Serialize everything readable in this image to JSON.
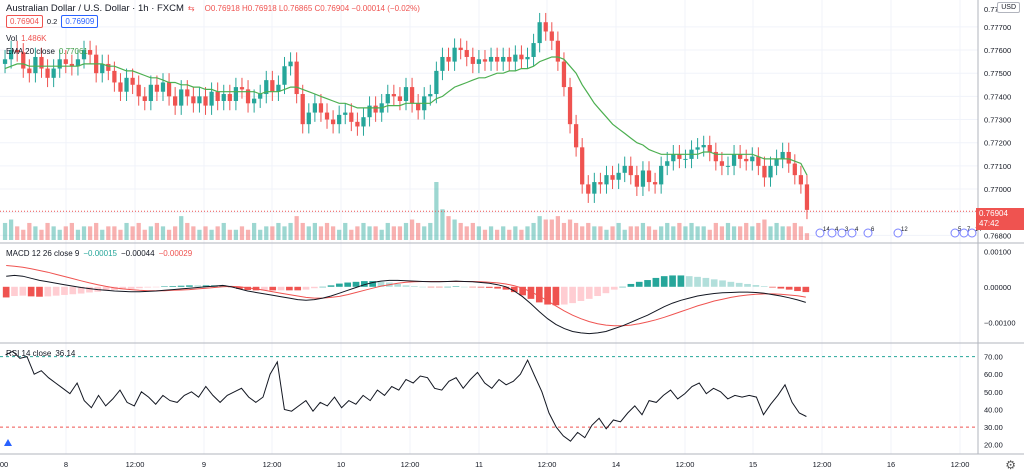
{
  "header": {
    "title": "Australian Dollar / U.S. Dollar · 1h · FXCM",
    "ohlc": "O0.76918 H0.76918 L0.76865 C0.76904 −0.00014 (−0.02%)",
    "sell_price": "0.76904",
    "spread": "0.2",
    "buy_price": "0.76909",
    "vol_label": "Vol",
    "vol_value": "1.486K",
    "ema_label": "EMA 20 close",
    "ema_value": "0.77061",
    "currency": "USD",
    "last_price": "0.76904",
    "countdown": "47:42"
  },
  "macd_legend": {
    "label": "MACD 12 26 close 9",
    "v1": "−0.00015",
    "v2": "−0.00044",
    "v3": "−0.00029"
  },
  "rsi_legend": {
    "label": "RSI 14 close",
    "value": "36.14"
  },
  "event_labels": [
    "14",
    "4",
    "3",
    "4",
    "6",
    "12",
    "5",
    "7",
    "14"
  ],
  "colors": {
    "up": "#26a69a",
    "down": "#ef5350",
    "ema": "#4caf50",
    "macd": "#131722",
    "signal": "#ef5350",
    "rsi": "#131722"
  },
  "chart_data": [
    {
      "type": "candlestick",
      "title": "Australian Dollar / U.S. Dollar · 1h · FXCM",
      "x_ticks": [
        "8",
        "12:00",
        "9",
        "12:00",
        "10",
        "12:00",
        "11",
        "12:00",
        "14",
        "12:00",
        "15",
        "12:00",
        "16",
        "12:00"
      ],
      "y_ticks": [
        0.777,
        0.776,
        0.775,
        0.774,
        0.773,
        0.772,
        0.771,
        0.77,
        0.769,
        0.768
      ],
      "y_tick_labels": [
        "0.77700",
        "0.77600",
        "0.77500",
        "0.77400",
        "0.77300",
        "0.77200",
        "0.77100",
        "0.77000",
        "0.76904",
        "0.76800"
      ],
      "ylim": [
        0.7678,
        0.7779
      ],
      "candles_close": [
        0.7756,
        0.776,
        0.7759,
        0.7752,
        0.775,
        0.7757,
        0.7752,
        0.7748,
        0.7752,
        0.7756,
        0.7754,
        0.7753,
        0.7756,
        0.776,
        0.7758,
        0.775,
        0.7754,
        0.7751,
        0.7746,
        0.7742,
        0.7748,
        0.7745,
        0.774,
        0.7738,
        0.7745,
        0.7742,
        0.7746,
        0.774,
        0.7736,
        0.7743,
        0.774,
        0.7737,
        0.774,
        0.7736,
        0.7742,
        0.7738,
        0.7741,
        0.7738,
        0.7744,
        0.7743,
        0.7737,
        0.7739,
        0.7741,
        0.7747,
        0.7742,
        0.7745,
        0.7753,
        0.7755,
        0.7741,
        0.7728,
        0.7733,
        0.7737,
        0.7733,
        0.773,
        0.7728,
        0.7732,
        0.7733,
        0.7729,
        0.7727,
        0.7731,
        0.7736,
        0.7733,
        0.7737,
        0.7741,
        0.774,
        0.7738,
        0.7744,
        0.7737,
        0.7734,
        0.774,
        0.7741,
        0.7751,
        0.7757,
        0.7755,
        0.7761,
        0.776,
        0.7757,
        0.7754,
        0.7756,
        0.7755,
        0.7757,
        0.7755,
        0.7757,
        0.7755,
        0.7758,
        0.7756,
        0.7757,
        0.7763,
        0.7772,
        0.7768,
        0.7764,
        0.7755,
        0.7744,
        0.7728,
        0.7718,
        0.7702,
        0.7698,
        0.7703,
        0.7702,
        0.7706,
        0.7704,
        0.7707,
        0.771,
        0.7706,
        0.7701,
        0.7708,
        0.7703,
        0.7702,
        0.771,
        0.7712,
        0.7715,
        0.7713,
        0.7713,
        0.7717,
        0.7718,
        0.7719,
        0.7716,
        0.7712,
        0.771,
        0.771,
        0.7715,
        0.7713,
        0.7712,
        0.7714,
        0.771,
        0.7705,
        0.771,
        0.7713,
        0.7716,
        0.7711,
        0.7706,
        0.7702,
        0.7691
      ],
      "ema": [
        0.7752,
        0.7753,
        0.7754,
        0.7754,
        0.7753,
        0.7753,
        0.7753,
        0.7753,
        0.7753,
        0.7753,
        0.7753,
        0.7753,
        0.7753,
        0.7754,
        0.7754,
        0.7754,
        0.7754,
        0.7753,
        0.7753,
        0.7752,
        0.7751,
        0.7751,
        0.775,
        0.7749,
        0.7748,
        0.7748,
        0.7747,
        0.7746,
        0.7746,
        0.7745,
        0.7745,
        0.7744,
        0.7744,
        0.7743,
        0.7743,
        0.7742,
        0.7742,
        0.7742,
        0.7742,
        0.7742,
        0.7742,
        0.7742,
        0.7741,
        0.7742,
        0.7742,
        0.7742,
        0.7743,
        0.7744,
        0.7744,
        0.7743,
        0.7742,
        0.7741,
        0.774,
        0.7739,
        0.7738,
        0.7737,
        0.7737,
        0.7736,
        0.7735,
        0.7735,
        0.7735,
        0.7735,
        0.7735,
        0.7736,
        0.7736,
        0.7736,
        0.7737,
        0.7737,
        0.7737,
        0.7737,
        0.7737,
        0.7739,
        0.774,
        0.7742,
        0.7744,
        0.7745,
        0.7746,
        0.7747,
        0.7748,
        0.7748,
        0.7749,
        0.775,
        0.775,
        0.7751,
        0.7751,
        0.7752,
        0.7752,
        0.7753,
        0.7755,
        0.7756,
        0.7757,
        0.7757,
        0.7756,
        0.7753,
        0.775,
        0.7745,
        0.7741,
        0.7737,
        0.7734,
        0.7731,
        0.7728,
        0.7726,
        0.7724,
        0.7722,
        0.772,
        0.7719,
        0.7717,
        0.7716,
        0.7715,
        0.7715,
        0.7715,
        0.7715,
        0.7715,
        0.7715,
        0.7715,
        0.7716,
        0.7716,
        0.7715,
        0.7715,
        0.7715,
        0.7715,
        0.7715,
        0.7715,
        0.7715,
        0.7714,
        0.7713,
        0.7713,
        0.7713,
        0.7713,
        0.7713,
        0.7712,
        0.7711,
        0.7706
      ]
    },
    {
      "type": "bar",
      "title": "Vol",
      "values": [
        5,
        6,
        4,
        3,
        5,
        4,
        3,
        5,
        4,
        3,
        4,
        5,
        3,
        4,
        4,
        5,
        3,
        4,
        4,
        3,
        5,
        4,
        5,
        3,
        4,
        5,
        4,
        3,
        4,
        7,
        5,
        4,
        3,
        4,
        3,
        4,
        5,
        3,
        3,
        4,
        3,
        5,
        3,
        4,
        4,
        5,
        4,
        5,
        7,
        5,
        4,
        5,
        4,
        5,
        4,
        3,
        5,
        3,
        4,
        5,
        4,
        4,
        3,
        5,
        4,
        4,
        5,
        6,
        5,
        4,
        5,
        17,
        9,
        7,
        6,
        5,
        4,
        5,
        4,
        3,
        4,
        3,
        4,
        3,
        4,
        3,
        4,
        5,
        7,
        6,
        6,
        7,
        5,
        6,
        5,
        4,
        5,
        4,
        4,
        3,
        4,
        5,
        3,
        4,
        4,
        5,
        4,
        3,
        4,
        5,
        4,
        5,
        4,
        5,
        4,
        4,
        3,
        5,
        4,
        5,
        4,
        4,
        5,
        4,
        5,
        6,
        4,
        5,
        4,
        4,
        5,
        4,
        2
      ]
    },
    {
      "type": "line",
      "title": "MACD 12 26 close 9",
      "y_ticks": [
        0.001,
        0,
        -0.001
      ],
      "y_tick_labels": [
        "0.00100",
        "0.00000",
        "−0.00100"
      ],
      "ylim": [
        -0.0015,
        0.00115
      ],
      "series": [
        {
          "name": "MACD",
          "values": [
            0.0003,
            0.00032,
            0.0003,
            0.00024,
            0.00018,
            0.00014,
            0.0001,
            6e-05,
            2e-05,
            -2e-05,
            -5e-05,
            -8e-05,
            -0.0001,
            -0.00012,
            -0.00013,
            -0.00014,
            -0.00014,
            -0.00013,
            -0.00012,
            -0.0001,
            -8e-05,
            -6e-05,
            -4e-05,
            -2e-05,
            0.0,
            2e-05,
            4e-05,
            0.0,
            -6e-05,
            -0.00012,
            -0.00016,
            -0.0002,
            -0.00024,
            -0.00028,
            -0.00032,
            -0.00036,
            -0.00038,
            -0.00036,
            -0.00032,
            -0.00026,
            -0.00018,
            -0.0001,
            -2e-05,
            6e-05,
            0.00012,
            0.00016,
            0.00018,
            0.00018,
            0.00017,
            0.00016,
            0.00015,
            0.00014,
            0.00014,
            0.00015,
            0.00016,
            0.00015,
            0.00014,
            0.00012,
            0.0001,
            6e-05,
            0.0,
            -0.00012,
            -0.00028,
            -0.00048,
            -0.0007,
            -0.0009,
            -0.00106,
            -0.00118,
            -0.00126,
            -0.0013,
            -0.00132,
            -0.0013,
            -0.00126,
            -0.00118,
            -0.0011,
            -0.001,
            -0.0009,
            -0.0008,
            -0.00068,
            -0.00056,
            -0.00046,
            -0.00038,
            -0.00032,
            -0.00026,
            -0.00022,
            -0.00019,
            -0.00017,
            -0.00016,
            -0.00015,
            -0.00015,
            -0.00016,
            -0.00018,
            -0.00022,
            -0.00026,
            -0.00031,
            -0.00037,
            -0.00044
          ]
        },
        {
          "name": "Signal",
          "values": [
            0.0006,
            0.00058,
            0.00055,
            0.00051,
            0.00046,
            0.00041,
            0.00035,
            0.00029,
            0.00023,
            0.00017,
            0.00011,
            6e-05,
            1e-05,
            -3e-05,
            -6e-05,
            -8e-05,
            -0.0001,
            -0.00011,
            -0.00011,
            -0.00011,
            -0.0001,
            -9e-05,
            -8e-05,
            -6e-05,
            -4e-05,
            -2e-05,
            0.0,
            1e-05,
            0.0,
            -3e-05,
            -6e-05,
            -0.0001,
            -0.00014,
            -0.00018,
            -0.00022,
            -0.00026,
            -0.0003,
            -0.00032,
            -0.00032,
            -0.0003,
            -0.00027,
            -0.00022,
            -0.00016,
            -0.0001,
            -4e-05,
            2e-05,
            6e-05,
            0.0001,
            0.00013,
            0.00014,
            0.00015,
            0.00015,
            0.00015,
            0.00015,
            0.00015,
            0.00015,
            0.00015,
            0.00014,
            0.00013,
            0.00011,
            8e-05,
            3e-05,
            -4e-05,
            -0.00014,
            -0.00026,
            -0.0004,
            -0.00054,
            -0.00068,
            -0.0008,
            -0.0009,
            -0.00098,
            -0.00104,
            -0.00108,
            -0.0011,
            -0.0011,
            -0.00108,
            -0.00104,
            -0.00099,
            -0.00093,
            -0.00086,
            -0.00078,
            -0.0007,
            -0.00062,
            -0.00054,
            -0.00047,
            -0.0004,
            -0.00035,
            -0.0003,
            -0.00026,
            -0.00023,
            -0.00021,
            -0.0002,
            -0.0002,
            -0.00021,
            -0.00023,
            -0.00025,
            -0.00029
          ]
        }
      ]
    },
    {
      "type": "line",
      "title": "RSI 14 close",
      "y_ticks": [
        70,
        60,
        50,
        40,
        30,
        20
      ],
      "y_tick_labels": [
        "70.00",
        "60.00",
        "50.00",
        "40.00",
        "30.00",
        "20.00"
      ],
      "ylim": [
        17,
        76
      ],
      "bands": [
        70,
        30
      ],
      "series": [
        {
          "name": "RSI",
          "values": [
            71,
            73,
            69,
            70,
            60,
            62,
            58,
            55,
            52,
            49,
            55,
            45,
            41,
            48,
            42,
            46,
            51,
            44,
            42,
            50,
            47,
            43,
            48,
            45,
            44,
            48,
            50,
            47,
            53,
            48,
            44,
            48,
            50,
            52,
            47,
            44,
            47,
            60,
            67,
            40,
            39,
            42,
            45,
            39,
            44,
            42,
            47,
            41,
            45,
            43,
            48,
            45,
            51,
            48,
            53,
            51,
            57,
            55,
            59,
            58,
            52,
            51,
            56,
            58,
            52,
            57,
            61,
            55,
            52,
            57,
            54,
            56,
            60,
            68,
            59,
            50,
            38,
            30,
            25,
            22,
            27,
            24,
            31,
            35,
            29,
            34,
            33,
            38,
            42,
            37,
            45,
            44,
            48,
            51,
            46,
            49,
            53,
            55,
            49,
            52,
            50,
            46,
            48,
            47,
            48,
            47,
            37,
            43,
            48,
            54,
            44,
            38,
            36
          ]
        }
      ]
    }
  ]
}
